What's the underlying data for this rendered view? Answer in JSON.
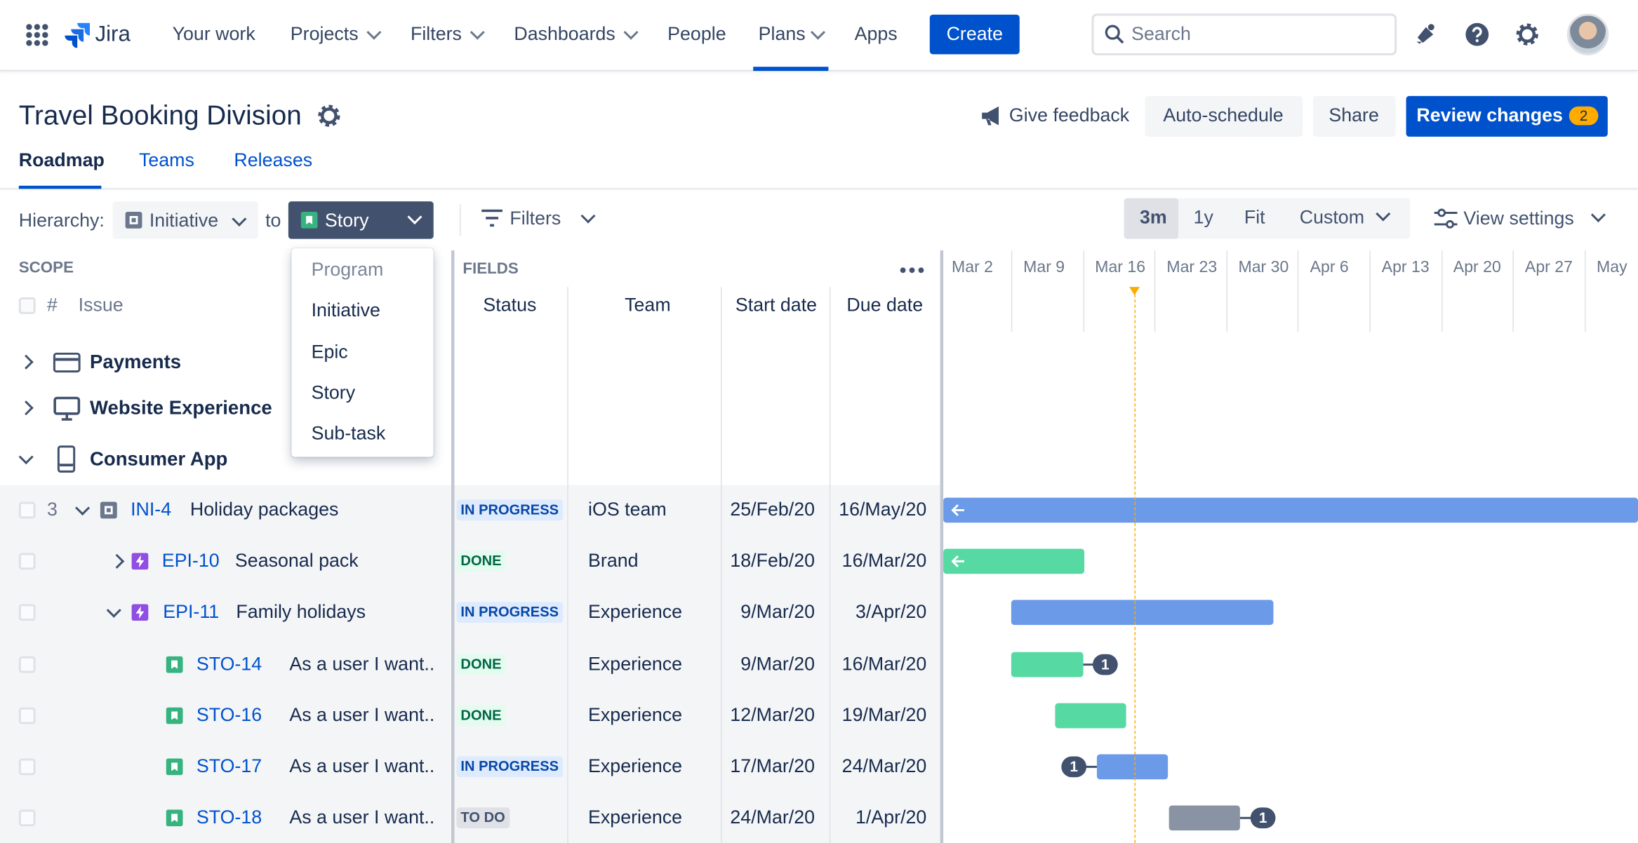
{
  "nav": {
    "product": "Jira",
    "items": [
      "Your work",
      "Projects",
      "Filters",
      "Dashboards",
      "People",
      "Plans",
      "Apps"
    ],
    "create": "Create",
    "search": "Search"
  },
  "header": {
    "title": "Travel Booking Division",
    "feedback": "Give feedback",
    "auto_schedule": "Auto-schedule",
    "share": "Share",
    "review": "Review changes",
    "review_count": 2
  },
  "tabs": [
    "Roadmap",
    "Teams",
    "Releases"
  ],
  "toolbar": {
    "hierarchy_label": "Hierarchy:",
    "from": "Initiative",
    "to_label": "to",
    "to": "Story",
    "filters": "Filters",
    "ranges": [
      "3m",
      "1y",
      "Fit",
      "Custom"
    ],
    "view_settings": "View settings"
  },
  "dropdown": [
    "Program",
    "Initiative",
    "Epic",
    "Story",
    "Sub-task"
  ],
  "scope": {
    "title": "SCOPE",
    "hash": "#",
    "issue": "Issue"
  },
  "fields": {
    "title": "FIELDS",
    "columns": [
      "Status",
      "Team",
      "Start date",
      "Due date"
    ]
  },
  "timeline": [
    "Mar 2",
    "Mar 9",
    "Mar 16",
    "Mar 23",
    "Mar 30",
    "Apr 6",
    "Apr 13",
    "Apr 20",
    "Apr 27",
    "May"
  ],
  "groups": [
    "Payments",
    "Website Experience",
    "Consumer App"
  ],
  "rows": [
    {
      "count": 3,
      "key": "INI-4",
      "summary": "Holiday packages",
      "status": "IN PROGRESS",
      "team": "iOS team",
      "start": "25/Feb/20",
      "due": "16/May/20"
    },
    {
      "key": "EPI-10",
      "summary": "Seasonal pack",
      "status": "DONE",
      "team": "Brand",
      "start": "18/Feb/20",
      "due": "16/Mar/20"
    },
    {
      "key": "EPI-11",
      "summary": "Family holidays",
      "status": "IN PROGRESS",
      "team": "Experience",
      "start": "9/Mar/20",
      "due": "3/Apr/20"
    },
    {
      "key": "STO-14",
      "summary": "As a user I want..",
      "status": "DONE",
      "team": "Experience",
      "start": "9/Mar/20",
      "due": "16/Mar/20",
      "dependencies": 1
    },
    {
      "key": "STO-16",
      "summary": "As a user I want..",
      "status": "DONE",
      "team": "Experience",
      "start": "12/Mar/20",
      "due": "19/Mar/20"
    },
    {
      "key": "STO-17",
      "summary": "As a user I want..",
      "status": "IN PROGRESS",
      "team": "Experience",
      "start": "17/Mar/20",
      "due": "24/Mar/20",
      "dependencies": 1
    },
    {
      "key": "STO-18",
      "summary": "As a user I want..",
      "status": "TO DO",
      "team": "Experience",
      "start": "24/Mar/20",
      "due": "1/Apr/20",
      "dependencies": 1
    }
  ]
}
